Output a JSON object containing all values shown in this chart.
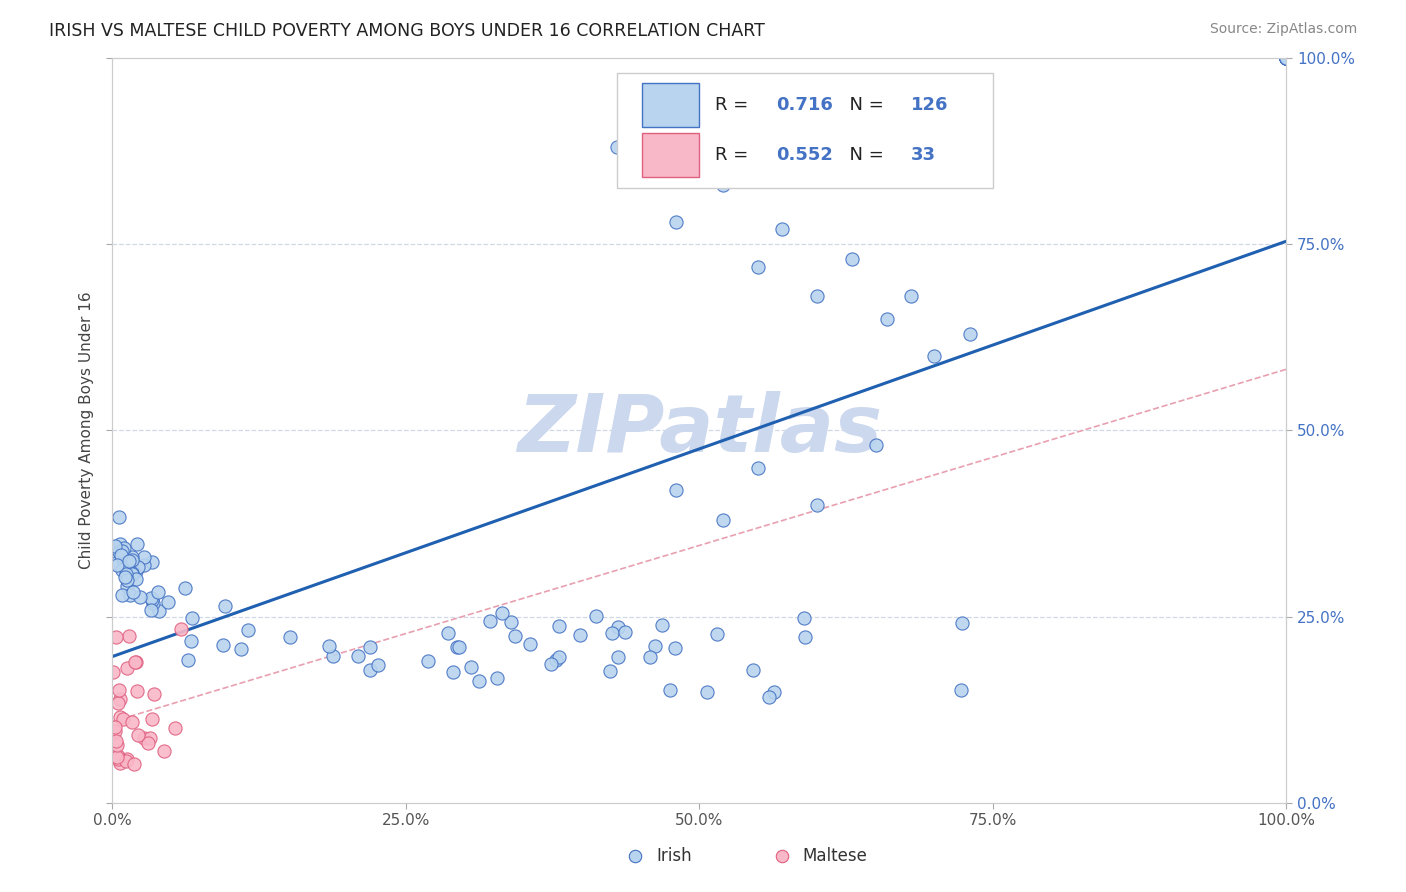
{
  "title": "IRISH VS MALTESE CHILD POVERTY AMONG BOYS UNDER 16 CORRELATION CHART",
  "source": "Source: ZipAtlas.com",
  "ylabel": "Child Poverty Among Boys Under 16",
  "irish_R": 0.716,
  "irish_N": 126,
  "maltese_R": 0.552,
  "maltese_N": 33,
  "irish_fill_color": "#b8d4ee",
  "maltese_fill_color": "#f9b8c8",
  "irish_edge_color": "#4472c4",
  "maltese_edge_color": "#e06080",
  "irish_line_color": "#2060b0",
  "maltese_line_color": "#e06080",
  "diagonal_color": "#c8d0e0",
  "background_color": "#ffffff",
  "watermark_color": "#ccd8ee",
  "y_tick_color": "#4472c4",
  "grid_color": "#d0d8e8",
  "legend_text_color": "#222222",
  "legend_num_color": "#4472c4",
  "source_color": "#888888"
}
